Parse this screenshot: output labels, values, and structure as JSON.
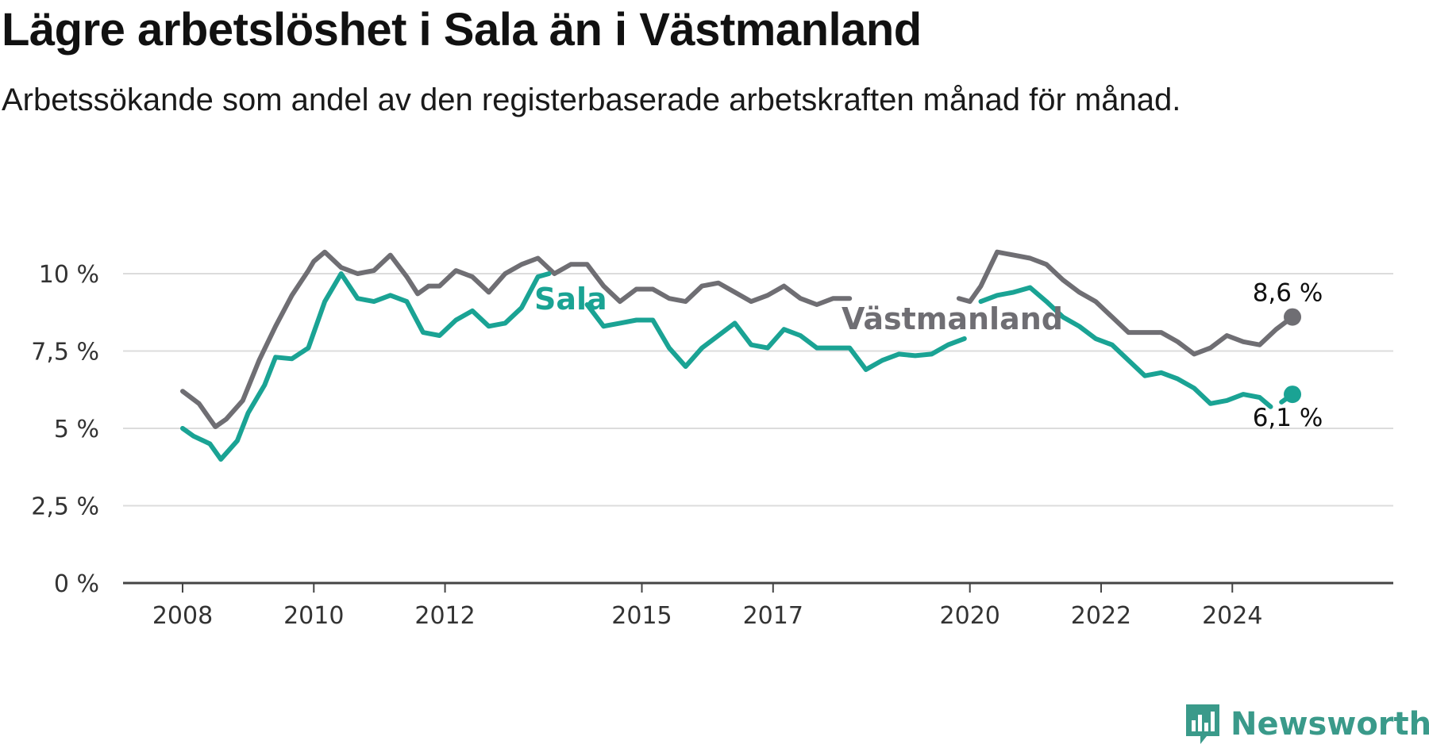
{
  "header": {
    "title": "Lägre arbetslöshet i Sala än i Västmanland",
    "subtitle": "Arbetssökande som andel av den registerbaserade arbetskraften månad för månad."
  },
  "brand": {
    "name": "Newsworthy",
    "icon": "newsworthy-bar-chart-icon",
    "color": "#3a9a8a"
  },
  "chart_data": {
    "type": "line",
    "title": "Lägre arbetslöshet i Sala än i Västmanland",
    "xlabel": "",
    "ylabel": "",
    "ylim": [
      0,
      10
    ],
    "xlim": [
      "2008-01",
      "2025-09"
    ],
    "yticks": [
      {
        "value": 0,
        "label": "0 %"
      },
      {
        "value": 2.5,
        "label": "2,5 %"
      },
      {
        "value": 5,
        "label": "5 %"
      },
      {
        "value": 7.5,
        "label": "7,5 %"
      },
      {
        "value": 10,
        "label": "10 %"
      }
    ],
    "xticks": [
      "2008",
      "2010",
      "2012",
      "2015",
      "2017",
      "2020",
      "2022",
      "2024"
    ],
    "grid": true,
    "series": [
      {
        "name": "Västmanland",
        "color": "#6f6e73",
        "end_label": "8,6 %",
        "points": [
          [
            "2008-01",
            6.2
          ],
          [
            "2008-04",
            5.8
          ],
          [
            "2008-06",
            5.3
          ],
          [
            "2008-07",
            5.05
          ],
          [
            "2008-09",
            5.3
          ],
          [
            "2008-12",
            5.9
          ],
          [
            "2009-03",
            7.2
          ],
          [
            "2009-06",
            8.3
          ],
          [
            "2009-09",
            9.3
          ],
          [
            "2009-12",
            10.1
          ],
          [
            "2010-01",
            10.4
          ],
          [
            "2010-03",
            10.7
          ],
          [
            "2010-06",
            10.2
          ],
          [
            "2010-09",
            10.0
          ],
          [
            "2010-12",
            10.1
          ],
          [
            "2011-03",
            10.6
          ],
          [
            "2011-06",
            9.9
          ],
          [
            "2011-08",
            9.35
          ],
          [
            "2011-10",
            9.6
          ],
          [
            "2011-12",
            9.6
          ],
          [
            "2012-03",
            10.1
          ],
          [
            "2012-06",
            9.9
          ],
          [
            "2012-09",
            9.4
          ],
          [
            "2012-12",
            10.0
          ],
          [
            "2013-03",
            10.3
          ],
          [
            "2013-06",
            10.5
          ],
          [
            "2013-09",
            10.0
          ],
          [
            "2013-12",
            10.3
          ],
          [
            "2014-03",
            10.3
          ],
          [
            "2014-06",
            9.6
          ],
          [
            "2014-09",
            9.1
          ],
          [
            "2014-12",
            9.5
          ],
          [
            "2015-03",
            9.5
          ],
          [
            "2015-06",
            9.2
          ],
          [
            "2015-09",
            9.1
          ],
          [
            "2015-12",
            9.6
          ],
          [
            "2016-03",
            9.7
          ],
          [
            "2016-06",
            9.4
          ],
          [
            "2016-09",
            9.1
          ],
          [
            "2016-12",
            9.3
          ],
          [
            "2017-03",
            9.6
          ],
          [
            "2017-06",
            9.2
          ],
          [
            "2017-09",
            9.0
          ],
          [
            "2017-12",
            9.2
          ],
          [
            "2018-03",
            9.2
          ]
        ],
        "points_b": [
          [
            "2019-11",
            9.2
          ],
          [
            "2020-01",
            9.1
          ],
          [
            "2020-03",
            9.6
          ],
          [
            "2020-06",
            10.7
          ],
          [
            "2020-09",
            10.6
          ],
          [
            "2020-12",
            10.5
          ],
          [
            "2021-03",
            10.3
          ],
          [
            "2021-06",
            9.8
          ],
          [
            "2021-09",
            9.4
          ],
          [
            "2021-12",
            9.1
          ],
          [
            "2022-03",
            8.6
          ],
          [
            "2022-06",
            8.1
          ],
          [
            "2022-09",
            8.1
          ],
          [
            "2022-12",
            8.1
          ],
          [
            "2023-03",
            7.8
          ],
          [
            "2023-06",
            7.4
          ],
          [
            "2023-09",
            7.6
          ],
          [
            "2023-12",
            8.0
          ],
          [
            "2024-03",
            7.8
          ],
          [
            "2024-06",
            7.7
          ],
          [
            "2024-09",
            8.2
          ],
          [
            "2024-12",
            8.6
          ]
        ]
      },
      {
        "name": "Sala",
        "color": "#1aa394",
        "end_label": "6,1 %",
        "points": [
          [
            "2008-01",
            5.0
          ],
          [
            "2008-03",
            4.75
          ],
          [
            "2008-06",
            4.5
          ],
          [
            "2008-08",
            4.0
          ],
          [
            "2008-11",
            4.6
          ],
          [
            "2009-01",
            5.5
          ],
          [
            "2009-04",
            6.4
          ],
          [
            "2009-06",
            7.3
          ],
          [
            "2009-09",
            7.25
          ],
          [
            "2009-12",
            7.6
          ],
          [
            "2010-03",
            9.1
          ],
          [
            "2010-06",
            10.0
          ],
          [
            "2010-09",
            9.2
          ],
          [
            "2010-12",
            9.1
          ],
          [
            "2011-03",
            9.3
          ],
          [
            "2011-06",
            9.1
          ],
          [
            "2011-09",
            8.1
          ],
          [
            "2011-12",
            8.0
          ],
          [
            "2012-03",
            8.5
          ],
          [
            "2012-06",
            8.8
          ],
          [
            "2012-09",
            8.3
          ],
          [
            "2012-12",
            8.4
          ],
          [
            "2013-03",
            8.9
          ],
          [
            "2013-06",
            9.9
          ],
          [
            "2013-08",
            10.0
          ]
        ],
        "points_b": [
          [
            "2014-03",
            9.0
          ],
          [
            "2014-06",
            8.3
          ],
          [
            "2014-09",
            8.4
          ],
          [
            "2014-12",
            8.5
          ],
          [
            "2015-03",
            8.5
          ],
          [
            "2015-06",
            7.6
          ],
          [
            "2015-09",
            7.0
          ],
          [
            "2015-12",
            7.6
          ],
          [
            "2016-03",
            8.0
          ],
          [
            "2016-06",
            8.4
          ],
          [
            "2016-09",
            7.7
          ],
          [
            "2016-12",
            7.6
          ],
          [
            "2017-03",
            8.2
          ],
          [
            "2017-06",
            8.0
          ],
          [
            "2017-09",
            7.6
          ],
          [
            "2017-12",
            7.6
          ],
          [
            "2018-03",
            7.6
          ],
          [
            "2018-06",
            6.9
          ],
          [
            "2018-09",
            7.2
          ],
          [
            "2018-12",
            7.4
          ],
          [
            "2019-03",
            7.35
          ],
          [
            "2019-06",
            7.4
          ],
          [
            "2019-09",
            7.7
          ],
          [
            "2019-12",
            7.9
          ]
        ],
        "points_c": [
          [
            "2020-03",
            9.1
          ],
          [
            "2020-06",
            9.3
          ],
          [
            "2020-09",
            9.4
          ],
          [
            "2020-12",
            9.55
          ],
          [
            "2021-03",
            9.1
          ],
          [
            "2021-06",
            8.6
          ],
          [
            "2021-09",
            8.3
          ],
          [
            "2021-12",
            7.9
          ],
          [
            "2022-03",
            7.7
          ],
          [
            "2022-06",
            7.2
          ],
          [
            "2022-09",
            6.7
          ],
          [
            "2022-12",
            6.8
          ],
          [
            "2023-03",
            6.6
          ],
          [
            "2023-06",
            6.3
          ],
          [
            "2023-09",
            5.8
          ],
          [
            "2023-12",
            5.9
          ],
          [
            "2024-03",
            6.1
          ],
          [
            "2024-06",
            6.0
          ],
          [
            "2024-08",
            5.7
          ]
        ],
        "points_d": [
          [
            "2024-10",
            5.85
          ],
          [
            "2024-12",
            6.1
          ]
        ]
      }
    ]
  }
}
